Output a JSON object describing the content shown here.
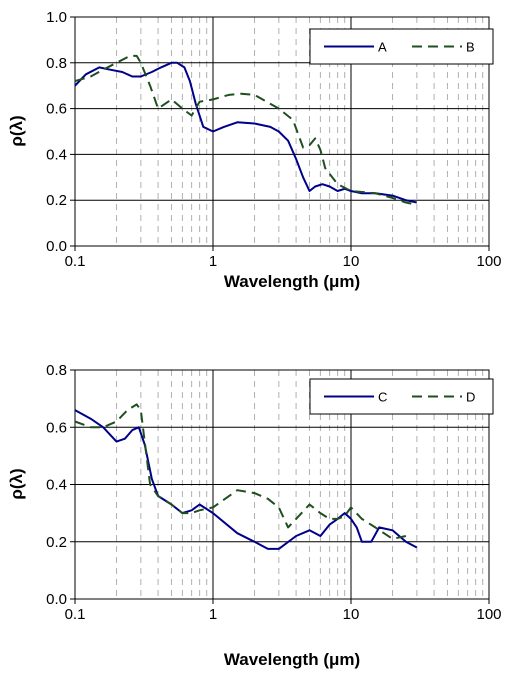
{
  "chart_data": [
    {
      "type": "line",
      "xscale": "log",
      "xlim": [
        0.1,
        100
      ],
      "ylim": [
        0,
        1
      ],
      "x_ticks": [
        "0.1",
        "1",
        "10",
        "100"
      ],
      "y_ticks": [
        "0.0",
        "0.2",
        "0.4",
        "0.6",
        "0.8",
        "1.0"
      ],
      "xlabel": "Wavelength (μm)",
      "ylabel": "ρ(λ)",
      "grid": "major solid, minor dashed vertical",
      "legend": "top-right",
      "series": [
        {
          "name": "A",
          "color": "#00008B",
          "dash": "solid",
          "x": [
            0.1,
            0.12,
            0.15,
            0.18,
            0.22,
            0.26,
            0.3,
            0.36,
            0.42,
            0.5,
            0.55,
            0.62,
            0.68,
            0.75,
            0.85,
            1.0,
            1.2,
            1.5,
            2.0,
            2.6,
            3.0,
            3.5,
            4.0,
            4.5,
            5.0,
            5.5,
            6.2,
            7.0,
            8.0,
            9.0,
            10.0,
            12.0,
            15.0,
            20.0,
            25.0,
            30.0
          ],
          "y": [
            0.7,
            0.75,
            0.78,
            0.77,
            0.76,
            0.74,
            0.74,
            0.76,
            0.78,
            0.8,
            0.8,
            0.78,
            0.72,
            0.62,
            0.52,
            0.5,
            0.52,
            0.54,
            0.535,
            0.52,
            0.5,
            0.46,
            0.38,
            0.3,
            0.24,
            0.26,
            0.27,
            0.26,
            0.24,
            0.25,
            0.24,
            0.23,
            0.23,
            0.22,
            0.2,
            0.19
          ]
        },
        {
          "name": "B",
          "color": "#1F4F1F",
          "dash": "dashed",
          "x": [
            0.1,
            0.13,
            0.16,
            0.2,
            0.25,
            0.28,
            0.3,
            0.35,
            0.4,
            0.5,
            0.6,
            0.7,
            0.8,
            1.0,
            1.3,
            1.6,
            2.0,
            3.0,
            3.8,
            4.5,
            5.0,
            5.5,
            6.0,
            6.5,
            8.0,
            10.0,
            15.0,
            20.0,
            25.0,
            30.0
          ],
          "y": [
            0.72,
            0.74,
            0.77,
            0.8,
            0.83,
            0.83,
            0.8,
            0.7,
            0.6,
            0.64,
            0.6,
            0.57,
            0.63,
            0.64,
            0.66,
            0.665,
            0.66,
            0.6,
            0.55,
            0.43,
            0.44,
            0.47,
            0.42,
            0.34,
            0.27,
            0.24,
            0.23,
            0.21,
            0.19,
            0.18
          ]
        }
      ]
    },
    {
      "type": "line",
      "xscale": "log",
      "xlim": [
        0.1,
        100
      ],
      "ylim": [
        0,
        0.8
      ],
      "x_ticks": [
        "0.1",
        "1",
        "10",
        "100"
      ],
      "y_ticks": [
        "0.0",
        "0.2",
        "0.4",
        "0.6",
        "0.8"
      ],
      "xlabel": "Wavelength (μm)",
      "ylabel": "ρ(λ)",
      "grid": "major solid, minor dashed vertical",
      "legend": "top-right",
      "series": [
        {
          "name": "C",
          "color": "#00008B",
          "dash": "solid",
          "x": [
            0.1,
            0.13,
            0.16,
            0.2,
            0.23,
            0.26,
            0.29,
            0.32,
            0.36,
            0.4,
            0.5,
            0.6,
            0.7,
            0.8,
            1.0,
            1.5,
            2.0,
            2.5,
            3.0,
            4.0,
            5.0,
            6.0,
            7.0,
            8.0,
            9.0,
            10.0,
            11.0,
            12.0,
            14.0,
            16.0,
            20.0,
            25.0,
            30.0
          ],
          "y": [
            0.66,
            0.63,
            0.6,
            0.55,
            0.56,
            0.59,
            0.6,
            0.54,
            0.42,
            0.36,
            0.33,
            0.3,
            0.31,
            0.33,
            0.3,
            0.23,
            0.2,
            0.175,
            0.175,
            0.22,
            0.24,
            0.22,
            0.26,
            0.28,
            0.3,
            0.28,
            0.25,
            0.2,
            0.2,
            0.25,
            0.24,
            0.2,
            0.18
          ]
        },
        {
          "name": "D",
          "color": "#1F4F1F",
          "dash": "dashed",
          "x": [
            0.1,
            0.13,
            0.16,
            0.2,
            0.24,
            0.28,
            0.3,
            0.32,
            0.35,
            0.4,
            0.5,
            0.6,
            0.7,
            0.8,
            1.0,
            1.5,
            2.0,
            2.5,
            3.0,
            3.5,
            4.0,
            5.0,
            6.0,
            7.0,
            8.0,
            9.0,
            10.0,
            12.0,
            15.0,
            20.0,
            25.0
          ],
          "y": [
            0.62,
            0.6,
            0.6,
            0.62,
            0.66,
            0.68,
            0.66,
            0.55,
            0.4,
            0.36,
            0.33,
            0.3,
            0.3,
            0.31,
            0.32,
            0.38,
            0.37,
            0.35,
            0.32,
            0.25,
            0.28,
            0.33,
            0.3,
            0.28,
            0.28,
            0.29,
            0.32,
            0.28,
            0.25,
            0.21,
            0.22
          ]
        }
      ]
    }
  ]
}
